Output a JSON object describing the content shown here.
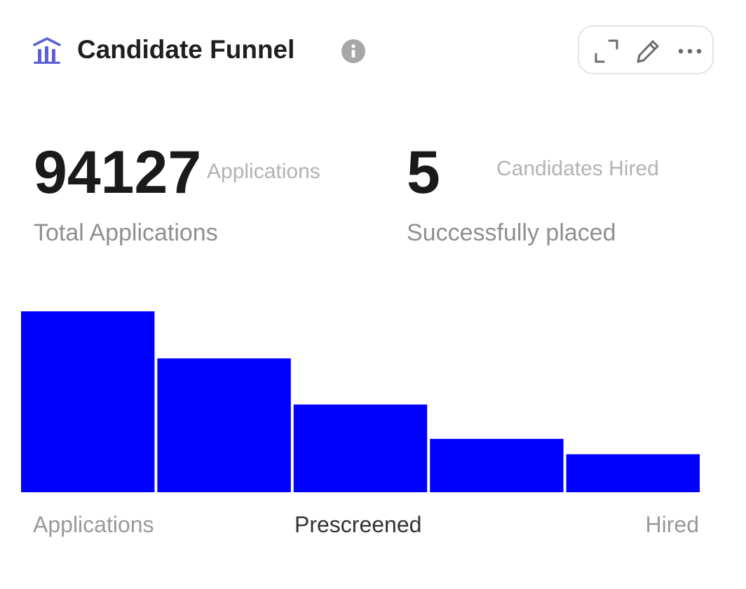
{
  "header": {
    "title": "Candidate Funnel",
    "title_icon": "bar-chart-icon",
    "info_icon": "info-icon",
    "tools": [
      "expand-icon",
      "pencil-icon",
      "more-horizontal-icon"
    ]
  },
  "stats": {
    "total": {
      "value": "94127",
      "unit": "Applications",
      "label": "Total Applications"
    },
    "hired": {
      "value": "5",
      "unit": "Candidates Hired",
      "label": "Successfully placed"
    }
  },
  "colors": {
    "bar": "#0000ff",
    "accent_icon": "#5a5fd8",
    "muted_label": "#999999",
    "active_label": "#333333"
  },
  "chart_data": {
    "type": "bar",
    "categories": [
      "Applications",
      "",
      "Prescreened",
      "",
      "Hired"
    ],
    "values": [
      100,
      74,
      48.5,
      29.5,
      21
    ],
    "ylim": [
      0,
      100
    ],
    "grid": false,
    "legend": "none",
    "tick_labels": [
      {
        "text": "Applications",
        "align": "left"
      },
      {
        "text": "Prescreened",
        "align": "center",
        "emphasis": true
      },
      {
        "text": "Hired",
        "align": "right"
      }
    ]
  }
}
